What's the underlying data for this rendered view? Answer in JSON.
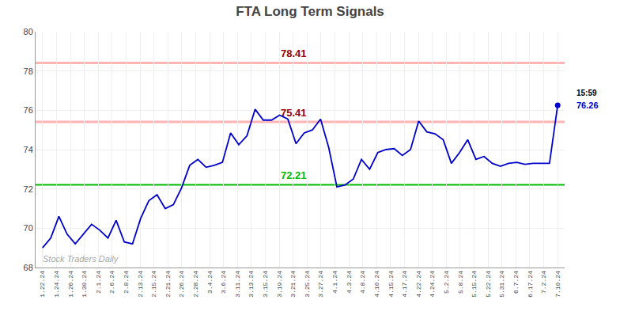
{
  "chart_data": {
    "type": "line",
    "title": "FTA Long Term Signals",
    "x": [
      0,
      0.5873,
      1.1746,
      1.7619,
      2.3492,
      2.9365,
      3.5238,
      4.1111,
      4.6984,
      5.2857,
      5.873,
      6.4603,
      7.0476,
      7.6349,
      8.2222,
      8.8095,
      9.3968,
      9.9841,
      10.5714,
      11.1587,
      11.746,
      12.3333,
      12.9206,
      13.5079,
      14.0952,
      14.6825,
      15.2698,
      15.8571,
      16.4444,
      17.0317,
      17.619,
      18.2063,
      18.7937,
      19.381,
      19.9683,
      20.5556,
      21.1429,
      21.7302,
      22.3175,
      22.9048,
      23.4921,
      24.0794,
      24.6667,
      25.254,
      25.8413,
      26.4286,
      27.0159,
      27.6032,
      28.1905,
      28.7778,
      29.3651,
      29.9524,
      30.5397,
      31.127,
      31.7143,
      32.3016,
      32.8889,
      33.4762,
      34.0635,
      34.6508,
      35.2381,
      35.8254,
      36.4127,
      37
    ],
    "values": [
      69.0,
      69.5,
      70.6,
      69.7,
      69.2,
      69.7,
      70.2,
      69.9,
      69.5,
      70.4,
      69.3,
      69.2,
      70.5,
      71.4,
      71.7,
      71.0,
      71.2,
      72.05,
      73.2,
      73.5,
      73.1,
      73.2,
      73.35,
      74.85,
      74.25,
      74.7,
      76.05,
      75.5,
      75.5,
      75.75,
      75.55,
      74.3,
      74.85,
      75.0,
      75.55,
      74.1,
      72.1,
      72.2,
      72.5,
      73.5,
      73.0,
      73.85,
      74.0,
      74.05,
      73.7,
      74.0,
      75.45,
      74.9,
      74.8,
      74.5,
      73.3,
      73.85,
      74.5,
      73.5,
      73.65,
      73.3,
      73.15,
      73.3,
      73.35,
      73.25,
      73.3,
      73.3,
      73.3,
      76.26
    ],
    "color": "#0000cc",
    "xlim": [
      -0.5,
      37.5
    ],
    "xticks": [
      {
        "value": 0,
        "label": "1.22.24"
      },
      {
        "value": 1,
        "label": "1.24.24"
      },
      {
        "value": 2,
        "label": "1.26.24"
      },
      {
        "value": 3,
        "label": "1.30.24"
      },
      {
        "value": 4,
        "label": "2.1.24"
      },
      {
        "value": 5,
        "label": "2.6.24"
      },
      {
        "value": 6,
        "label": "2.8.24"
      },
      {
        "value": 7,
        "label": "2.13.24"
      },
      {
        "value": 8,
        "label": "2.15.24"
      },
      {
        "value": 9,
        "label": "2.21.24"
      },
      {
        "value": 10,
        "label": "2.26.24"
      },
      {
        "value": 11,
        "label": "2.28.24"
      },
      {
        "value": 12,
        "label": "3.4.24"
      },
      {
        "value": 13,
        "label": "3.6.24"
      },
      {
        "value": 14,
        "label": "3.11.24"
      },
      {
        "value": 15,
        "label": "3.13.24"
      },
      {
        "value": 16,
        "label": "3.15.24"
      },
      {
        "value": 17,
        "label": "3.19.24"
      },
      {
        "value": 18,
        "label": "3.21.24"
      },
      {
        "value": 19,
        "label": "3.25.24"
      },
      {
        "value": 20,
        "label": "3.27.24"
      },
      {
        "value": 21,
        "label": "4.1.24"
      },
      {
        "value": 22,
        "label": "4.3.24"
      },
      {
        "value": 23,
        "label": "4.8.24"
      },
      {
        "value": 24,
        "label": "4.10.24"
      },
      {
        "value": 25,
        "label": "4.15.24"
      },
      {
        "value": 26,
        "label": "4.17.24"
      },
      {
        "value": 27,
        "label": "4.22.24"
      },
      {
        "value": 28,
        "label": "4.24.24"
      },
      {
        "value": 29,
        "label": "5.2.24"
      },
      {
        "value": 30,
        "label": "5.8.24"
      },
      {
        "value": 31,
        "label": "5.15.24"
      },
      {
        "value": 32,
        "label": "5.22.24"
      },
      {
        "value": 33,
        "label": "5.31.24"
      },
      {
        "value": 34,
        "label": "6.7.24"
      },
      {
        "value": 35,
        "label": "6.17.24"
      },
      {
        "value": 36,
        "label": "7.2.24"
      },
      {
        "value": 37,
        "label": "7.10.24"
      }
    ],
    "ylim": [
      68,
      80
    ],
    "yticks": [
      68,
      70,
      72,
      74,
      76,
      78,
      80
    ],
    "grid": true,
    "hlines": [
      {
        "value": 72.21,
        "color": "#00bb00",
        "label": "72.21",
        "label_color": "#00bb00"
      },
      {
        "value": 78.41,
        "color": "#ffb3b3",
        "label": "78.41",
        "label_color": "#990000"
      },
      {
        "value": 75.41,
        "color": "#ffb3b3",
        "label": "75.41",
        "label_color": "#990000"
      }
    ],
    "end_label": "76.26",
    "end_time": "15:59",
    "watermark": "Stock Traders Daily"
  }
}
